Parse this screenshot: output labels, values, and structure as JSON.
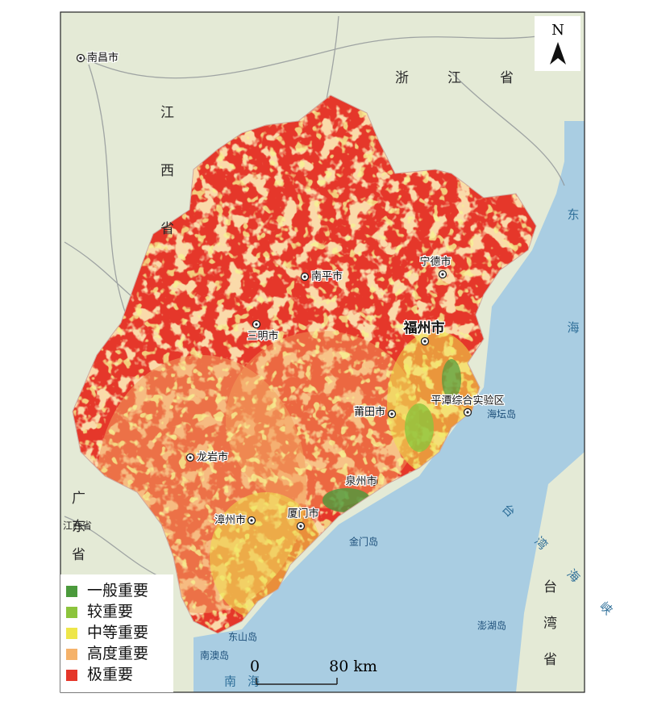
{
  "map": {
    "north_label": "N",
    "cities": [
      "南昌市",
      "南平市",
      "宁德市",
      "三明市",
      "福州市",
      "莆田市",
      "平潭综合实验区",
      "龙岩市",
      "泉州市",
      "漳州市",
      "厦门市"
    ],
    "islands": [
      "海坛岛",
      "金门岛",
      "东山岛",
      "南澳岛",
      "澎湖岛"
    ],
    "regions": [
      "浙江省",
      "江西省",
      "广东省",
      "江西省",
      "台湾省"
    ],
    "seas": [
      "东海",
      "台湾海峡",
      "南海"
    ]
  },
  "legend": {
    "items": [
      {
        "label": "一般重要",
        "color": "#4b9a3c"
      },
      {
        "label": "较重要",
        "color": "#8cc43c"
      },
      {
        "label": "中等重要",
        "color": "#eee64a"
      },
      {
        "label": "高度重要",
        "color": "#f5b26a"
      },
      {
        "label": "极重要",
        "color": "#e5372a"
      }
    ]
  },
  "scale_bar": {
    "start": "0",
    "end": "80 km"
  }
}
